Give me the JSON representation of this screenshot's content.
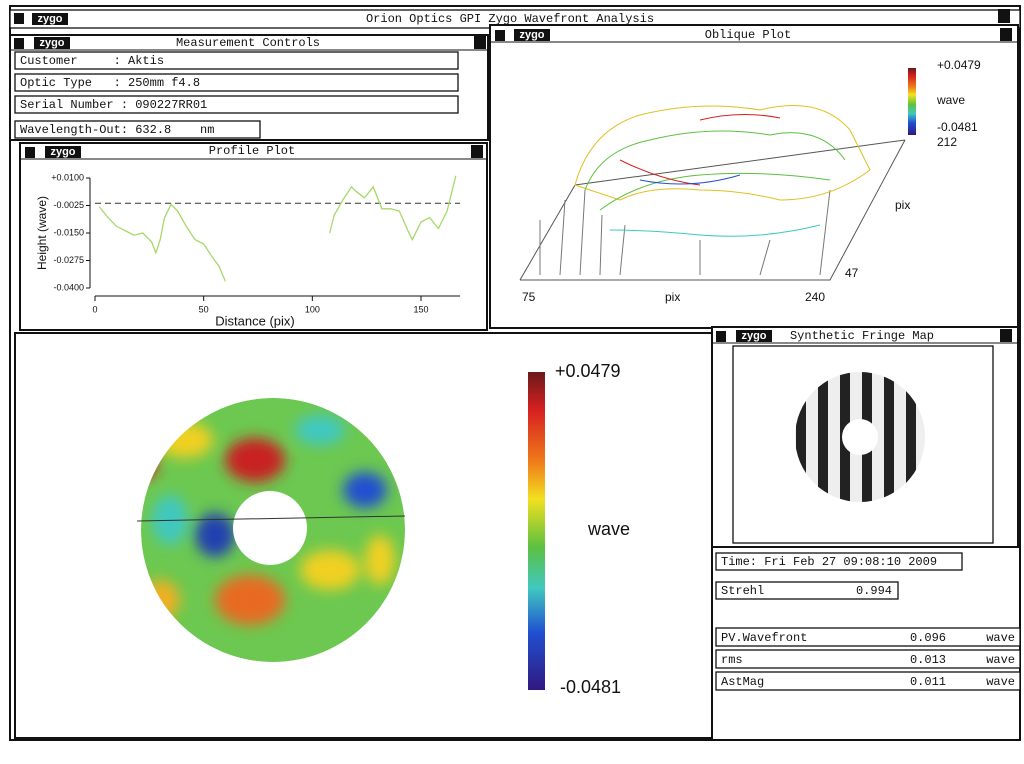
{
  "window": {
    "title": "Orion Optics GPI Zygo Wavefront Analysis",
    "logo": "zygo"
  },
  "measurement_controls": {
    "title": "Measurement Controls",
    "fields": [
      "Customer     : Aktis",
      "Optic Type   : 250mm f4.8",
      "Serial Number : 090227RR01",
      "Wavelength-Out: 632.8    nm"
    ]
  },
  "profile_plot": {
    "title": "Profile Plot",
    "type": "line",
    "xlabel": "Distance (pix)",
    "ylabel": "Height (wave)",
    "x": [
      2,
      6,
      10,
      14,
      18,
      22,
      26,
      28,
      30,
      32,
      35,
      38,
      42,
      46,
      50,
      54,
      57,
      60,
      84,
      108,
      110,
      114,
      118,
      120,
      124,
      128,
      132,
      136,
      140,
      144,
      146,
      150,
      154,
      158,
      162,
      166
    ],
    "y": [
      -0.003,
      -0.008,
      -0.012,
      -0.014,
      -0.016,
      -0.015,
      -0.019,
      -0.024,
      -0.018,
      -0.008,
      -0.002,
      -0.005,
      -0.012,
      -0.018,
      -0.02,
      -0.026,
      -0.03,
      -0.037,
      null,
      -0.015,
      -0.007,
      0.0,
      0.006,
      0.004,
      0.001,
      0.006,
      -0.004,
      -0.004,
      -0.005,
      -0.014,
      -0.018,
      -0.01,
      -0.008,
      -0.013,
      -0.005,
      0.011
    ],
    "color": "#a6d96a",
    "reference_line": -0.0015,
    "xlim": [
      0,
      168
    ],
    "ylim": [
      -0.04,
      0.01
    ],
    "xticks": [
      0,
      50,
      100,
      150
    ],
    "yticks": [
      {
        "value": 0.01,
        "label": "+0.0100"
      },
      {
        "value": -0.0025,
        "label": "-0.0025"
      },
      {
        "value": -0.015,
        "label": "-0.0150"
      },
      {
        "value": -0.0275,
        "label": "-0.0275"
      },
      {
        "value": -0.04,
        "label": "-0.0400"
      }
    ]
  },
  "oblique_plot": {
    "title": "Oblique Plot",
    "scale_max": "+0.0479",
    "scale_unit": "wave",
    "scale_min": "-0.0481",
    "y_axis_max": "212",
    "y_axis_label": "pix",
    "y_axis_min": "47",
    "x_axis_min": "75",
    "x_axis_label": "pix",
    "x_axis_max": "240"
  },
  "surface_map": {
    "scale_max": "+0.0479",
    "scale_unit": "wave",
    "scale_min": "-0.0481"
  },
  "fringe_map": {
    "title": "Synthetic Fringe Map"
  },
  "time": "Time: Fri Feb 27 09:08:10 2009",
  "strehl": {
    "label": "Strehl",
    "value": "0.994"
  },
  "results": [
    {
      "label": "PV.Wavefront",
      "value": "0.096",
      "unit": "wave"
    },
    {
      "label": "rms",
      "value": "0.013",
      "unit": "wave"
    },
    {
      "label": "AstMag",
      "value": "0.011",
      "unit": "wave"
    }
  ]
}
